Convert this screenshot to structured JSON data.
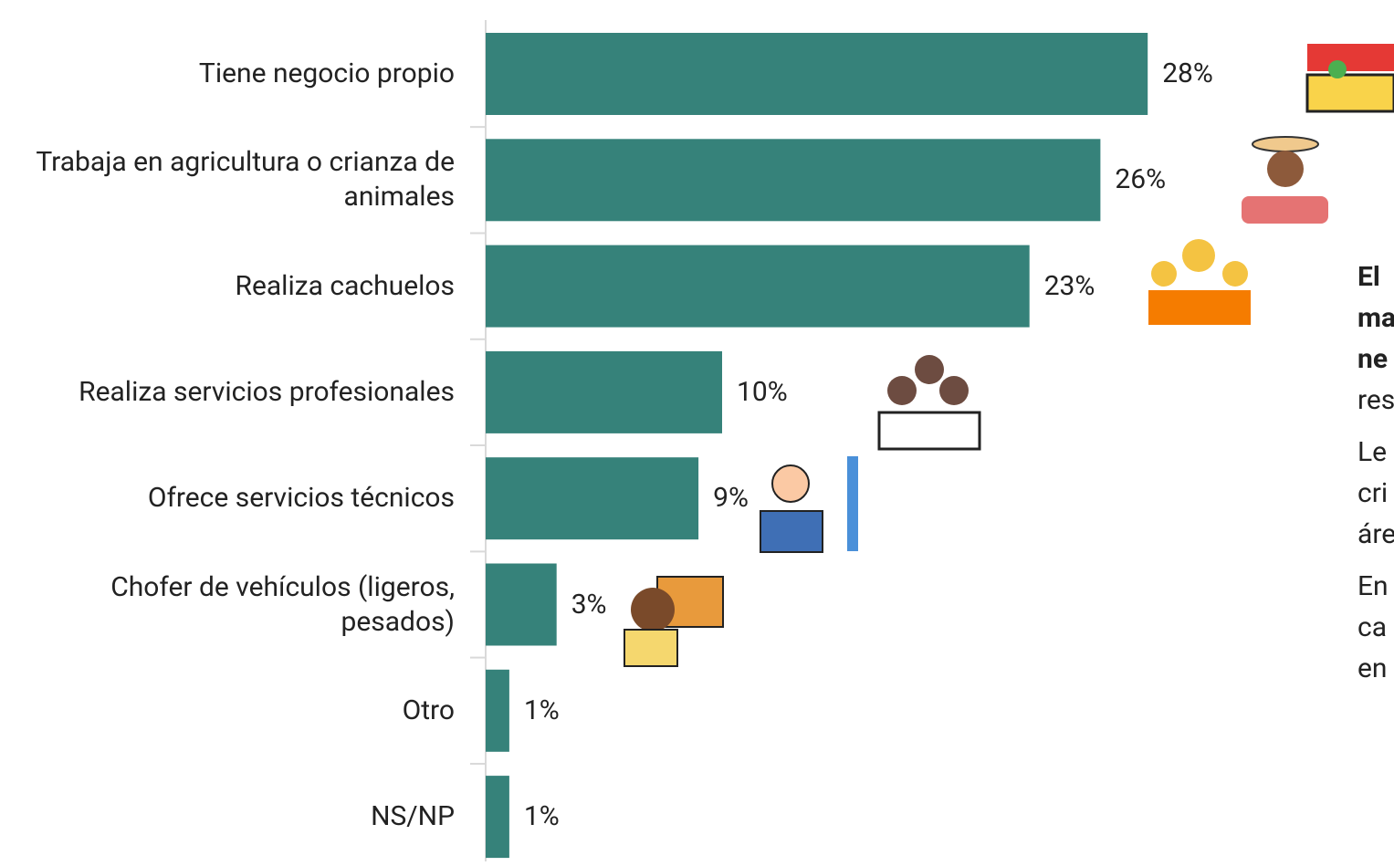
{
  "chart_data": {
    "type": "bar",
    "orientation": "horizontal",
    "categories": [
      "Tiene negocio propio",
      "Trabaja en agricultura o crianza de animales",
      "Realiza cachuelos",
      "Realiza servicios profesionales",
      "Ofrece servicios técnicos",
      "Chofer de vehículos (ligeros, pesados)",
      "Otro",
      "NS/NP"
    ],
    "values": [
      28,
      26,
      23,
      10,
      9,
      3,
      1,
      1
    ],
    "value_labels": [
      "28%",
      "26%",
      "23%",
      "10%",
      "9%",
      "3%",
      "1%",
      "1%"
    ],
    "color": "#36827a"
  },
  "side_text": [
    [
      "El",
      "ma",
      "ne",
      "res"
    ],
    [
      "Le",
      "cri",
      "áre"
    ],
    [
      "En",
      "ca",
      "en"
    ]
  ]
}
